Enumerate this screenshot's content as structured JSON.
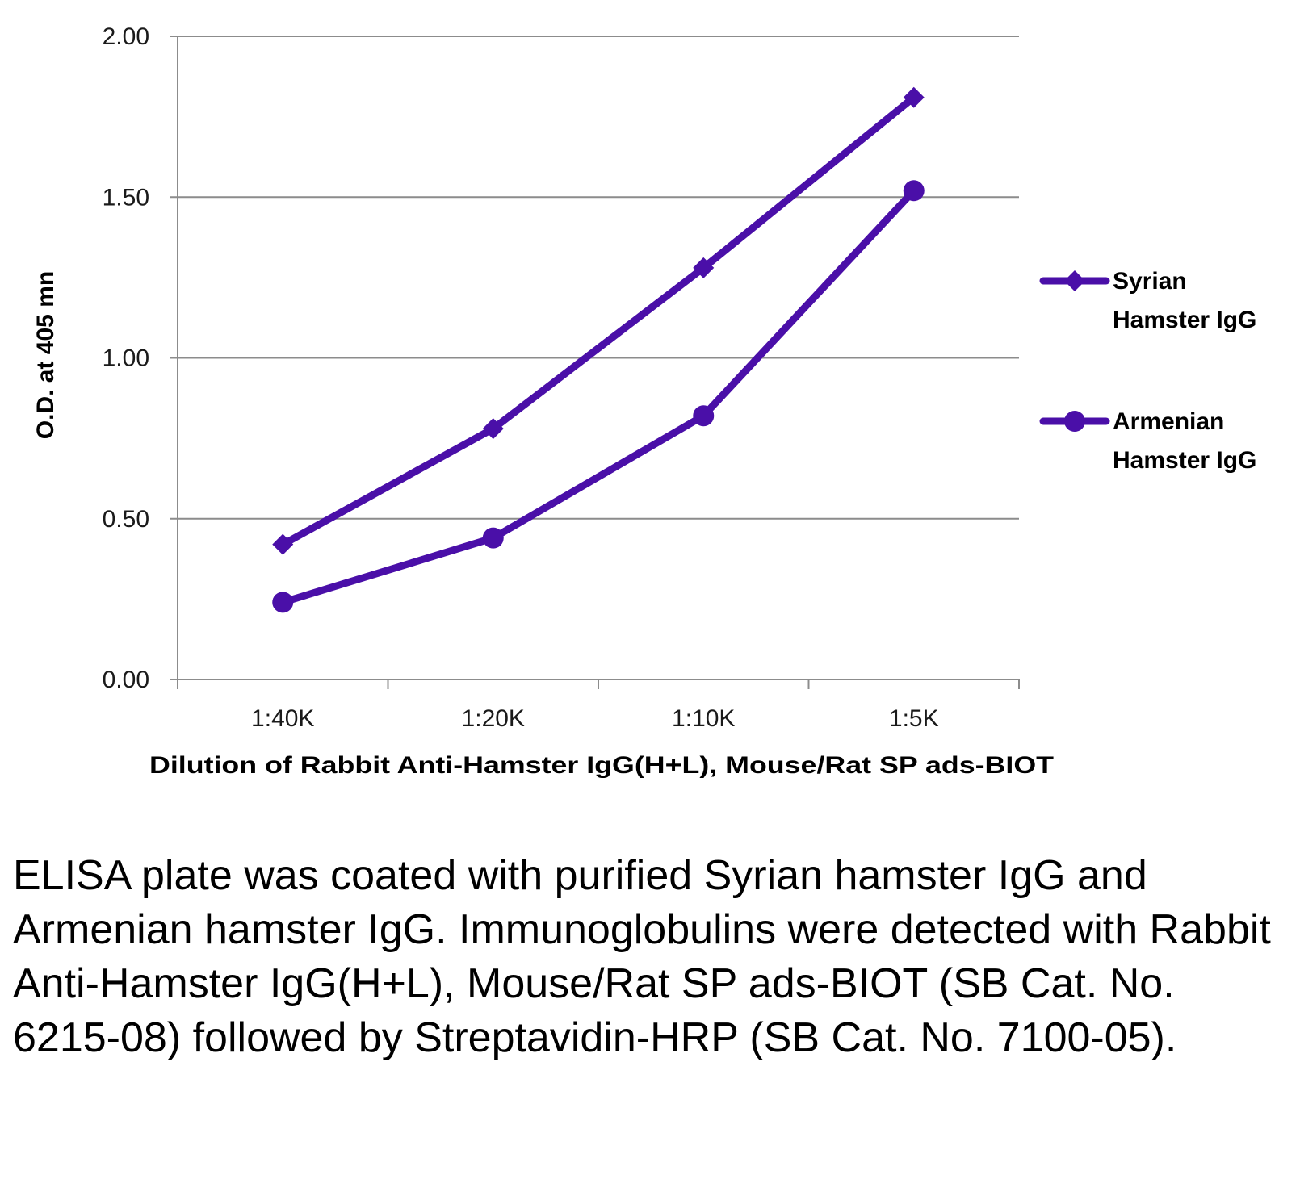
{
  "chart_data": {
    "type": "line",
    "categories": [
      "1:40K",
      "1:20K",
      "1:10K",
      "1:5K"
    ],
    "series": [
      {
        "name": "Syrian Hamster IgG",
        "marker": "diamond",
        "values": [
          0.42,
          0.78,
          1.28,
          1.81
        ]
      },
      {
        "name": "Armenian Hamster IgG",
        "marker": "circle",
        "values": [
          0.24,
          0.44,
          0.82,
          1.52
        ]
      }
    ],
    "xlabel": "Dilution of Rabbit Anti-Hamster IgG(H+L), Mouse/Rat SP ads-BIOT",
    "ylabel": "O.D. at 405 mn",
    "ylim": [
      0,
      2
    ],
    "yticks": [
      "0.00",
      "0.50",
      "1.00",
      "1.50",
      "2.00"
    ],
    "grid": true,
    "legend_position": "right",
    "line_color": "#4a0fa8"
  },
  "caption": "ELISA plate was coated with purified Syrian hamster IgG and Armenian hamster IgG. Immunoglobulins were detected with Rabbit Anti-Hamster IgG(H+L), Mouse/Rat SP ads-BIOT (SB Cat. No. 6215-08) followed by Streptavidin-HRP (SB Cat. No. 7100-05)."
}
